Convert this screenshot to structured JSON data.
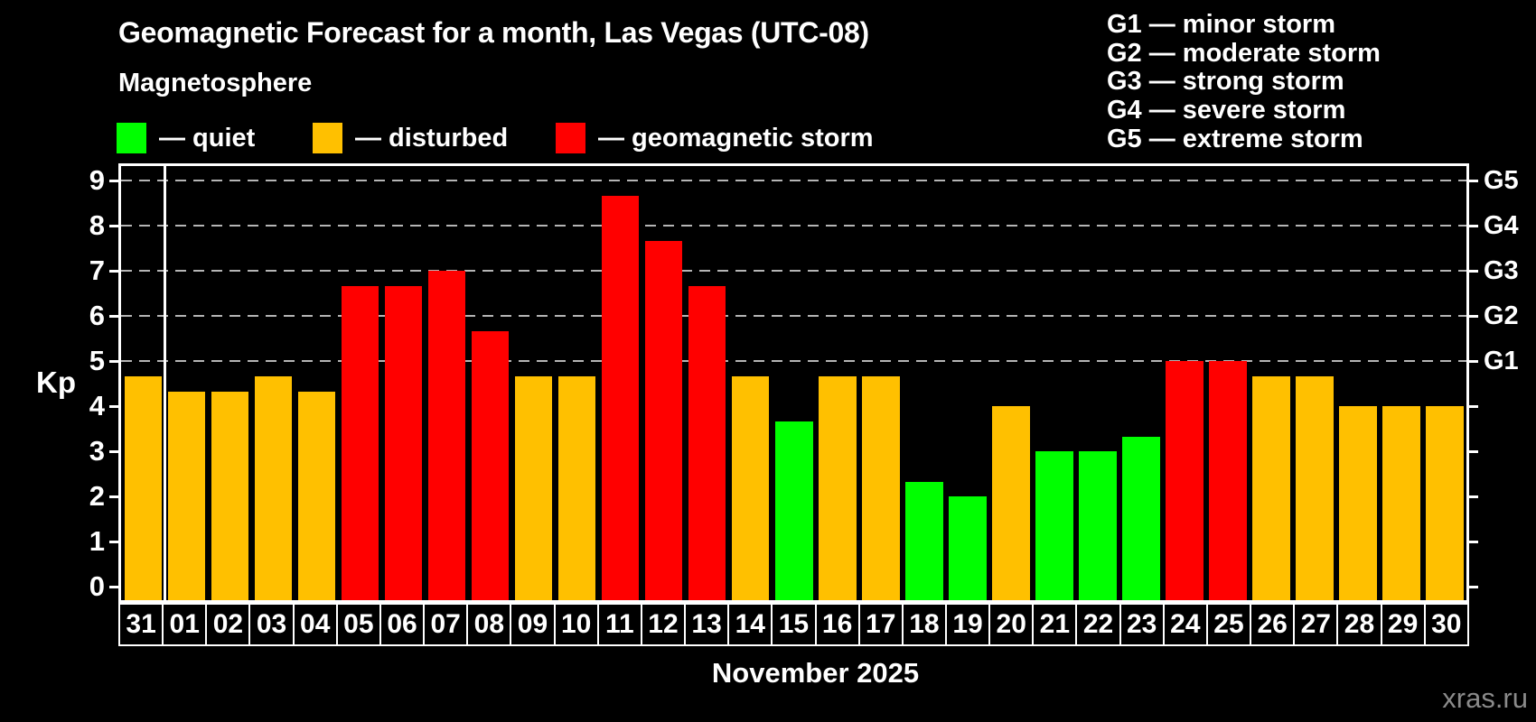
{
  "title": "Geomagnetic Forecast for a month, Las Vegas (UTC-08)",
  "subtitle": "Magnetosphere",
  "legend": {
    "items": [
      {
        "key": "quiet",
        "label": "— quiet",
        "color": "#00ff00"
      },
      {
        "key": "disturbed",
        "label": "— disturbed",
        "color": "#ffc000"
      },
      {
        "key": "storm",
        "label": "— geomagnetic storm",
        "color": "#ff0000"
      }
    ]
  },
  "storm_scale_legend": [
    "G1 — minor storm",
    "G2 — moderate storm",
    "G3 — strong storm",
    "G4 — severe storm",
    "G5 — extreme storm"
  ],
  "watermark": "xras.ru",
  "chart_data": {
    "type": "bar",
    "title": "Geomagnetic Forecast for a month, Las Vegas (UTC-08)",
    "xlabel": "November 2025",
    "ylabel": "Kp",
    "ylim": [
      -0.3,
      9.32
    ],
    "yticks": [
      0,
      1,
      2,
      3,
      4,
      5,
      6,
      7,
      8,
      9
    ],
    "gridline_levels": [
      5,
      6,
      7,
      8,
      9
    ],
    "right_axis": [
      {
        "kp": 5,
        "label": "G1"
      },
      {
        "kp": 6,
        "label": "G2"
      },
      {
        "kp": 7,
        "label": "G3"
      },
      {
        "kp": 8,
        "label": "G4"
      },
      {
        "kp": 9,
        "label": "G5"
      }
    ],
    "month_separator_after_index": 0,
    "state_colors": {
      "quiet": "#00ff00",
      "disturbed": "#ffc000",
      "storm": "#ff0000"
    },
    "bars": [
      {
        "date": "31",
        "kp": 4.67,
        "state": "disturbed"
      },
      {
        "date": "01",
        "kp": 4.33,
        "state": "disturbed"
      },
      {
        "date": "02",
        "kp": 4.33,
        "state": "disturbed"
      },
      {
        "date": "03",
        "kp": 4.67,
        "state": "disturbed"
      },
      {
        "date": "04",
        "kp": 4.33,
        "state": "disturbed"
      },
      {
        "date": "05",
        "kp": 6.67,
        "state": "storm"
      },
      {
        "date": "06",
        "kp": 6.67,
        "state": "storm"
      },
      {
        "date": "07",
        "kp": 7.0,
        "state": "storm"
      },
      {
        "date": "08",
        "kp": 5.67,
        "state": "storm"
      },
      {
        "date": "09",
        "kp": 4.67,
        "state": "disturbed"
      },
      {
        "date": "10",
        "kp": 4.67,
        "state": "disturbed"
      },
      {
        "date": "11",
        "kp": 8.67,
        "state": "storm"
      },
      {
        "date": "12",
        "kp": 7.67,
        "state": "storm"
      },
      {
        "date": "13",
        "kp": 6.67,
        "state": "storm"
      },
      {
        "date": "14",
        "kp": 4.67,
        "state": "disturbed"
      },
      {
        "date": "15",
        "kp": 3.67,
        "state": "quiet"
      },
      {
        "date": "16",
        "kp": 4.67,
        "state": "disturbed"
      },
      {
        "date": "17",
        "kp": 4.67,
        "state": "disturbed"
      },
      {
        "date": "18",
        "kp": 2.33,
        "state": "quiet"
      },
      {
        "date": "19",
        "kp": 2.0,
        "state": "quiet"
      },
      {
        "date": "20",
        "kp": 4.0,
        "state": "disturbed"
      },
      {
        "date": "21",
        "kp": 3.0,
        "state": "quiet"
      },
      {
        "date": "22",
        "kp": 3.0,
        "state": "quiet"
      },
      {
        "date": "23",
        "kp": 3.33,
        "state": "quiet"
      },
      {
        "date": "24",
        "kp": 5.0,
        "state": "storm"
      },
      {
        "date": "25",
        "kp": 5.0,
        "state": "storm"
      },
      {
        "date": "26",
        "kp": 4.67,
        "state": "disturbed"
      },
      {
        "date": "27",
        "kp": 4.67,
        "state": "disturbed"
      },
      {
        "date": "28",
        "kp": 4.0,
        "state": "disturbed"
      },
      {
        "date": "29",
        "kp": 4.0,
        "state": "disturbed"
      },
      {
        "date": "30",
        "kp": 4.0,
        "state": "disturbed"
      }
    ]
  }
}
